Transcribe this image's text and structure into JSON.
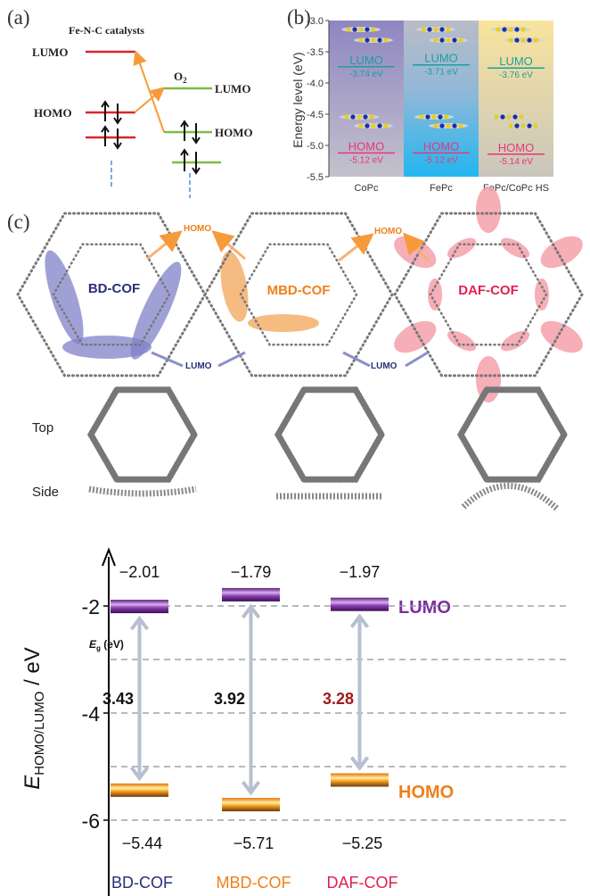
{
  "panel_a": {
    "label": "(a)",
    "title": "Fe-N-C catalysts",
    "catalyst_lumo": "LUMO",
    "catalyst_homo": "HOMO",
    "o2_label": "O",
    "o2_subscript": "2",
    "o2_lumo": "LUMO",
    "o2_homo": "HOMO",
    "colors": {
      "catalyst": "#d7262b",
      "o2": "#7dbb45",
      "transfer": "#f79a3a",
      "dashed": "#4a8fdb"
    }
  },
  "panel_b": {
    "label": "(b)",
    "chart_data": {
      "type": "energy-level",
      "ylabel": "Energy level (eV)",
      "ylim": [
        -5.5,
        -3.0
      ],
      "yticks": [
        "-3.0",
        "-3.5",
        "-4.0",
        "-4.5",
        "-5.0",
        "-5.5"
      ],
      "categories": [
        "CoPc",
        "FePc",
        "FePc/CoPc HS"
      ],
      "lumo_label": "LUMO",
      "homo_label": "HOMO",
      "lumo_values": [
        -3.74,
        -3.71,
        -3.76
      ],
      "homo_values": [
        -5.12,
        -5.12,
        -5.14
      ],
      "lumo_text": [
        "-3.74 eV",
        "-3.71 eV",
        "-3.76 eV"
      ],
      "homo_text": [
        "-5.12 eV",
        "-5.12 eV",
        "-5.14 eV"
      ],
      "colors": {
        "lumo": "#1e9e9e",
        "homo": "#e8357a"
      }
    }
  },
  "panel_c": {
    "label": "(c)",
    "structures": [
      {
        "name": "BD-COF",
        "color": "#2a2e7a"
      },
      {
        "name": "MBD-COF",
        "color": "#f07f1a"
      },
      {
        "name": "DAF-COF",
        "color": "#e0214f"
      }
    ],
    "homo_label": "HOMO",
    "lumo_label": "LUMO",
    "row_top": "Top",
    "row_side": "Side"
  },
  "panel_d": {
    "chart_data": {
      "type": "energy-level",
      "ylabel": "E",
      "ylabel_subscript": "HOMO/LUMO",
      "ylabel_unit": " / eV",
      "yticks": [
        "-2",
        "-4",
        "-6"
      ],
      "grid_values": [
        -2,
        -3,
        -4,
        -5,
        -6
      ],
      "grid": true,
      "categories": [
        "BD-COF",
        "MBD-COF",
        "DAF-COF"
      ],
      "category_colors": [
        "#2a2e7a",
        "#f07f1a",
        "#e0214f"
      ],
      "lumo": [
        -2.01,
        -1.79,
        -1.97
      ],
      "homo": [
        -5.44,
        -5.71,
        -5.25
      ],
      "lumo_text": [
        "−2.01",
        "−1.79",
        "−1.97"
      ],
      "homo_text": [
        "−5.44",
        "−5.71",
        "−5.25"
      ],
      "gap_title": "E",
      "gap_title_subscript": "g",
      "gap_title_unit": " (eV)",
      "gaps": [
        "3.43",
        "3.92",
        "3.28"
      ],
      "gap_colors": [
        "#111111",
        "#111111",
        "#a11a1a"
      ],
      "lumo_label": "LUMO",
      "homo_label": "HOMO",
      "colors": {
        "lumo": "#7b2f9e",
        "homo": "#f07f1a",
        "arrow": "#b7c0d0",
        "grid": "#9aa3b2"
      }
    }
  }
}
